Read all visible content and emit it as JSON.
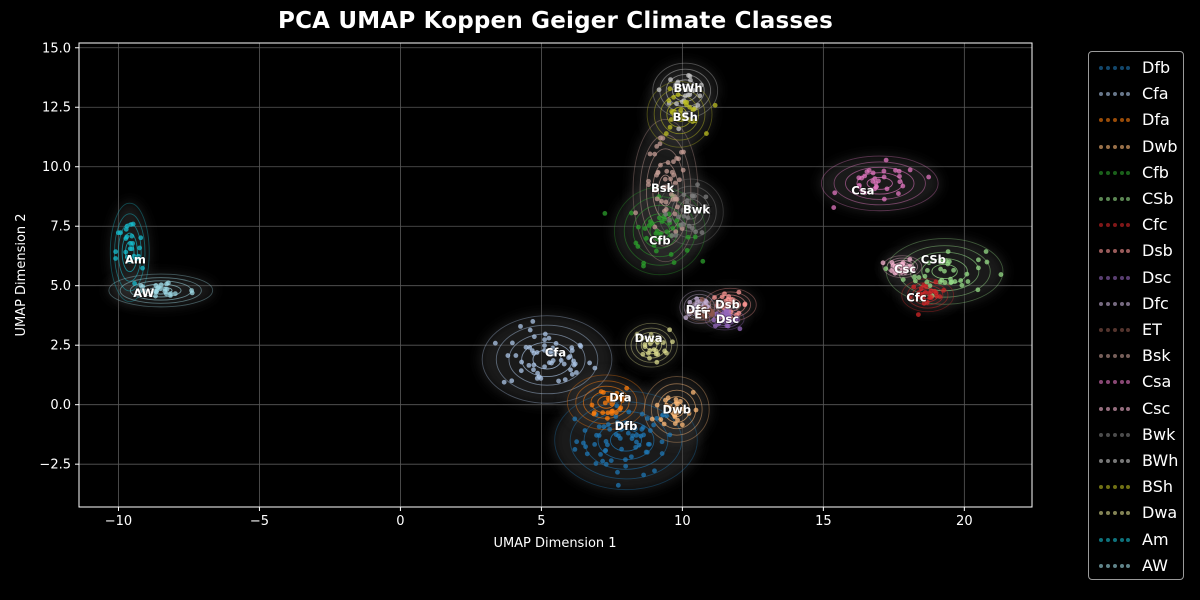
{
  "chart_data": {
    "type": "scatter",
    "title": "PCA UMAP Koppen Geiger Climate Classes",
    "xlabel": "UMAP Dimension 1",
    "ylabel": "UMAP Dimension 2",
    "xlim": [
      -11.4,
      22.4
    ],
    "ylim": [
      -4.3,
      15.2
    ],
    "xticks": [
      -10,
      -5,
      0,
      5,
      10,
      15,
      20
    ],
    "yticks": [
      -2.5,
      0.0,
      2.5,
      5.0,
      7.5,
      10.0,
      12.5,
      15.0
    ],
    "xtick_labels": [
      "−10",
      "−5",
      "0",
      "5",
      "10",
      "15",
      "20"
    ],
    "ytick_labels": [
      "−2.5",
      "0.0",
      "2.5",
      "5.0",
      "7.5",
      "10.0",
      "12.5",
      "15.0"
    ],
    "grid": true,
    "legend_position": "outside-right",
    "background": "#000000",
    "series": [
      {
        "name": "Dfb",
        "color": "#1f77b4",
        "center": [
          8.0,
          -1.5
        ],
        "spread": [
          1.1,
          0.9
        ],
        "label": "Dfb",
        "label_xy": [
          8.0,
          -0.9
        ]
      },
      {
        "name": "Cfa",
        "color": "#aec7e8",
        "center": [
          5.2,
          1.9
        ],
        "spread": [
          1.0,
          0.8
        ],
        "label": "Cfa",
        "label_xy": [
          5.5,
          2.2
        ]
      },
      {
        "name": "Dfa",
        "color": "#ff7f0e",
        "center": [
          7.3,
          0.1
        ],
        "spread": [
          0.6,
          0.5
        ],
        "label": "Dfa",
        "label_xy": [
          7.8,
          0.3
        ]
      },
      {
        "name": "Dwb",
        "color": "#ffbb78",
        "center": [
          9.8,
          -0.2
        ],
        "spread": [
          0.5,
          0.6
        ],
        "label": "Dwb",
        "label_xy": [
          9.8,
          -0.2
        ]
      },
      {
        "name": "Cfb",
        "color": "#2ca02c",
        "center": [
          9.2,
          7.3
        ],
        "spread": [
          0.7,
          0.8
        ],
        "label": "Cfb",
        "label_xy": [
          9.2,
          6.9
        ]
      },
      {
        "name": "CSb",
        "color": "#98df8a",
        "center": [
          19.3,
          5.6
        ],
        "spread": [
          0.9,
          0.6
        ],
        "label": "CSb",
        "label_xy": [
          18.9,
          6.1
        ]
      },
      {
        "name": "Cfc",
        "color": "#d62728",
        "center": [
          18.7,
          4.6
        ],
        "spread": [
          0.4,
          0.3
        ],
        "label": "Cfc",
        "label_xy": [
          18.3,
          4.5
        ]
      },
      {
        "name": "Dsb",
        "color": "#ff9896",
        "center": [
          11.7,
          4.2
        ],
        "spread": [
          0.4,
          0.3
        ],
        "label": "Dsb",
        "label_xy": [
          11.6,
          4.2
        ]
      },
      {
        "name": "Dsc",
        "color": "#9467bd",
        "center": [
          11.5,
          3.6
        ],
        "spread": [
          0.3,
          0.2
        ],
        "label": "Dsc",
        "label_xy": [
          11.6,
          3.6
        ]
      },
      {
        "name": "Dfc",
        "color": "#c5b0d5",
        "center": [
          10.6,
          4.1
        ],
        "spread": [
          0.3,
          0.3
        ],
        "label": "Dfc",
        "label_xy": [
          10.5,
          4.0
        ]
      },
      {
        "name": "ET",
        "color": "#8c564b",
        "center": [
          10.8,
          3.9
        ],
        "spread": [
          0.3,
          0.2
        ],
        "label": "ET",
        "label_xy": [
          10.7,
          3.8
        ]
      },
      {
        "name": "Bsk",
        "color": "#c49c94",
        "center": [
          9.4,
          9.0
        ],
        "spread": [
          0.5,
          1.3
        ],
        "label": "Bsk",
        "label_xy": [
          9.3,
          9.1
        ]
      },
      {
        "name": "Csa",
        "color": "#e377c2",
        "center": [
          17.0,
          9.3
        ],
        "spread": [
          0.9,
          0.5
        ],
        "label": "Csa",
        "label_xy": [
          16.4,
          9.0
        ]
      },
      {
        "name": "Csc",
        "color": "#f7b6d2",
        "center": [
          17.8,
          5.8
        ],
        "spread": [
          0.3,
          0.2
        ],
        "label": "Csc",
        "label_xy": [
          17.9,
          5.7
        ]
      },
      {
        "name": "Bwk",
        "color": "#7f7f7f",
        "center": [
          10.3,
          8.1
        ],
        "spread": [
          0.5,
          0.6
        ],
        "label": "Bwk",
        "label_xy": [
          10.5,
          8.2
        ]
      },
      {
        "name": "BWh",
        "color": "#c7c7c7",
        "center": [
          10.1,
          13.2
        ],
        "spread": [
          0.5,
          0.5
        ],
        "label": "BWh",
        "label_xy": [
          10.2,
          13.3
        ]
      },
      {
        "name": "BSh",
        "color": "#bcbd22",
        "center": [
          9.9,
          12.2
        ],
        "spread": [
          0.5,
          0.6
        ],
        "label": "BSh",
        "label_xy": [
          10.1,
          12.1
        ]
      },
      {
        "name": "Dwa",
        "color": "#dbdb8d",
        "center": [
          8.9,
          2.5
        ],
        "spread": [
          0.4,
          0.4
        ],
        "label": "Dwa",
        "label_xy": [
          8.8,
          2.8
        ]
      },
      {
        "name": "Am",
        "color": "#17becf",
        "center": [
          -9.6,
          6.4
        ],
        "spread": [
          0.3,
          0.9
        ],
        "label": "Am",
        "label_xy": [
          -9.4,
          6.1
        ]
      },
      {
        "name": "AW",
        "color": "#9edae5",
        "center": [
          -8.5,
          4.8
        ],
        "spread": [
          0.8,
          0.3
        ],
        "label": "AW",
        "label_xy": [
          -9.1,
          4.7
        ]
      }
    ]
  }
}
